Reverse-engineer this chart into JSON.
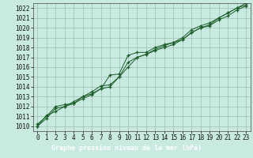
{
  "title": "",
  "xlabel": "Graphe pression niveau de la mer (hPa)",
  "ylabel": "",
  "background_color": "#c8eae0",
  "plot_bg_color": "#c8eae0",
  "footer_bg_color": "#2d6b4a",
  "grid_color": "#a0bdb5",
  "line_color": "#1a5c28",
  "marker": "+",
  "xlim": [
    -0.5,
    23.5
  ],
  "ylim": [
    1009.5,
    1022.5
  ],
  "xticks": [
    0,
    1,
    2,
    3,
    4,
    5,
    6,
    7,
    8,
    9,
    10,
    11,
    12,
    13,
    14,
    15,
    16,
    17,
    18,
    19,
    20,
    21,
    22,
    23
  ],
  "yticks": [
    1010,
    1011,
    1012,
    1013,
    1014,
    1015,
    1016,
    1017,
    1018,
    1019,
    1020,
    1021,
    1022
  ],
  "series": [
    [
      1010.0,
      1011.1,
      1011.5,
      1012.0,
      1012.5,
      1013.0,
      1013.3,
      1013.8,
      1015.2,
      1015.3,
      1017.2,
      1017.5,
      1017.5,
      1018.0,
      1018.3,
      1018.5,
      1018.8,
      1019.5,
      1020.0,
      1020.3,
      1021.0,
      1021.5,
      1022.0,
      1022.5
    ],
    [
      1010.2,
      1011.0,
      1012.0,
      1012.2,
      1012.3,
      1013.0,
      1013.5,
      1014.1,
      1014.2,
      1015.0,
      1016.0,
      1017.0,
      1017.3,
      1017.8,
      1018.2,
      1018.5,
      1019.0,
      1019.8,
      1020.2,
      1020.5,
      1021.0,
      1021.5,
      1022.0,
      1022.3
    ],
    [
      1010.0,
      1010.8,
      1011.8,
      1012.0,
      1012.3,
      1012.8,
      1013.2,
      1013.8,
      1014.0,
      1015.0,
      1016.5,
      1017.0,
      1017.3,
      1017.7,
      1018.0,
      1018.3,
      1018.8,
      1019.5,
      1020.0,
      1020.2,
      1020.8,
      1021.2,
      1021.8,
      1022.2
    ]
  ],
  "xlabel_color": "#ffffff",
  "xlabel_bg": "#2d6b4a",
  "tick_fontsize": 5.5,
  "xlabel_fontsize": 6.0
}
